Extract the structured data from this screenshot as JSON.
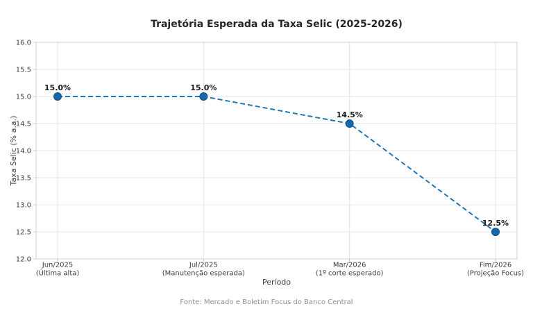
{
  "chart_data": {
    "type": "line",
    "title": "Trajetória Esperada da Taxa Selic (2025-2026)",
    "xlabel": "Período",
    "ylabel": "Taxa Selic (% a.a.)",
    "categories": [
      {
        "period": "Jun/2025",
        "note": "(Última alta)"
      },
      {
        "period": "Jul/2025",
        "note": "(Manutenção esperada)"
      },
      {
        "period": "Mar/2026",
        "note": "(1º corte esperado)"
      },
      {
        "period": "Fim/2026",
        "note": "(Projeção Focus)"
      }
    ],
    "series": [
      {
        "name": "Taxa Selic",
        "values": [
          15.0,
          15.0,
          14.5,
          12.5
        ],
        "point_labels": [
          "15.0%",
          "15.0%",
          "14.5%",
          "12.5%"
        ]
      }
    ],
    "ylim": [
      12.0,
      16.0
    ],
    "y_ticks": [
      "12.0",
      "12.5",
      "13.0",
      "13.5",
      "14.0",
      "14.5",
      "15.0",
      "15.5",
      "16.0"
    ],
    "grid": true,
    "legend": "none",
    "line_style": "dashed",
    "colors": {
      "line": "#1f77b4",
      "marker": "#1668a8",
      "marker_edge": "#0f5186",
      "grid": "#e4e4e4",
      "axis_border": "#cfcfcf",
      "tick": "#b5b5b5",
      "tick_text": "#3b3b3b",
      "point_label_text": "#1a1a1a"
    },
    "source_note": "Fonte: Mercado e Boletim Focus do Banco Central"
  }
}
